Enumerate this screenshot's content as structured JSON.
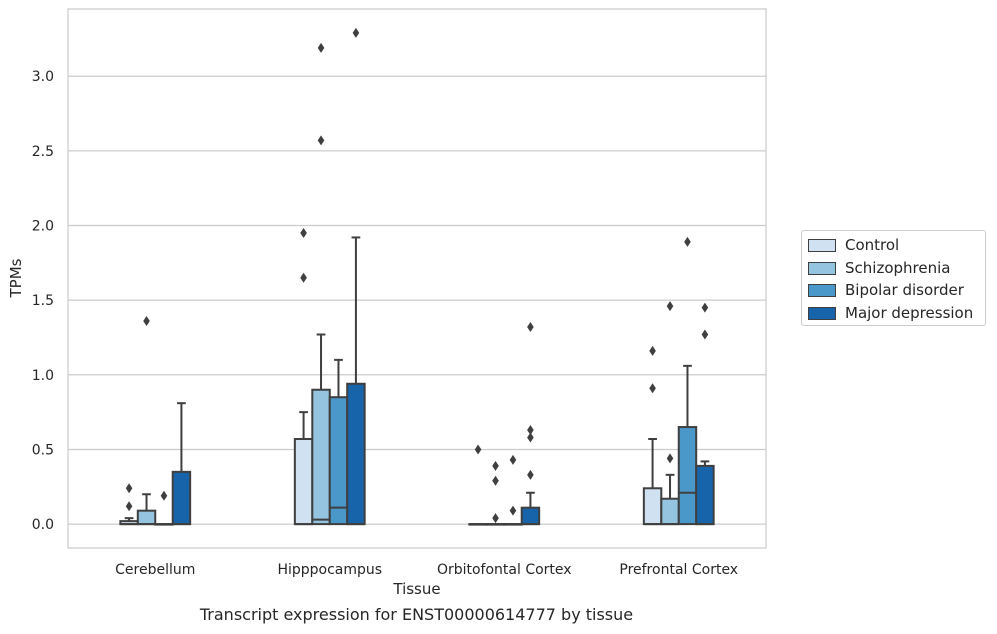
{
  "chart_data": {
    "type": "box",
    "title": "Transcript expression for ENST00000614777 by tissue",
    "xlabel": "Tissue",
    "ylabel": "TPMs",
    "ylim": [
      -0.16,
      3.45
    ],
    "yticks": [
      "0.0",
      "0.5",
      "1.0",
      "1.5",
      "2.0",
      "2.5",
      "3.0"
    ],
    "grid": true,
    "legend_position": "right",
    "categories": [
      "Cerebellum",
      "Hipppocampus",
      "Orbitofontal Cortex",
      "Prefrontal Cortex"
    ],
    "series": [
      {
        "name": "Control",
        "color": "#d0e1f2",
        "boxes": [
          {
            "category": "Cerebellum",
            "min": 0.0,
            "q1": 0.0,
            "median": 0.0,
            "q3": 0.02,
            "max": 0.04,
            "outliers": [
              0.12,
              0.24
            ]
          },
          {
            "category": "Hipppocampus",
            "min": 0.0,
            "q1": 0.0,
            "median": 0.0,
            "q3": 0.57,
            "max": 0.75,
            "outliers": [
              1.65,
              1.95
            ]
          },
          {
            "category": "Orbitofontal Cortex",
            "min": 0.0,
            "q1": 0.0,
            "median": 0.0,
            "q3": 0.0,
            "max": 0.0,
            "outliers": [
              0.5
            ]
          },
          {
            "category": "Prefrontal Cortex",
            "min": 0.0,
            "q1": 0.0,
            "median": 0.0,
            "q3": 0.24,
            "max": 0.57,
            "outliers": [
              0.91,
              1.16
            ]
          }
        ]
      },
      {
        "name": "Schizophrenia",
        "color": "#94c4df",
        "boxes": [
          {
            "category": "Cerebellum",
            "min": 0.0,
            "q1": 0.0,
            "median": 0.0,
            "q3": 0.09,
            "max": 0.2,
            "outliers": [
              1.36
            ]
          },
          {
            "category": "Hipppocampus",
            "min": 0.0,
            "q1": 0.0,
            "median": 0.03,
            "q3": 0.9,
            "max": 1.27,
            "outliers": [
              2.57,
              3.19
            ]
          },
          {
            "category": "Orbitofontal Cortex",
            "min": 0.0,
            "q1": 0.0,
            "median": 0.0,
            "q3": 0.0,
            "max": 0.0,
            "outliers": [
              0.04,
              0.29,
              0.39
            ]
          },
          {
            "category": "Prefrontal Cortex",
            "min": 0.0,
            "q1": 0.0,
            "median": 0.0,
            "q3": 0.17,
            "max": 0.33,
            "outliers": [
              0.44,
              1.46
            ]
          }
        ]
      },
      {
        "name": "Bipolar disorder",
        "color": "#4a98c9",
        "boxes": [
          {
            "category": "Cerebellum",
            "min": 0.0,
            "q1": 0.0,
            "median": 0.0,
            "q3": 0.0,
            "max": 0.0,
            "outliers": [
              0.19
            ]
          },
          {
            "category": "Hipppocampus",
            "min": 0.0,
            "q1": 0.0,
            "median": 0.11,
            "q3": 0.85,
            "max": 1.1,
            "outliers": []
          },
          {
            "category": "Orbitofontal Cortex",
            "min": 0.0,
            "q1": 0.0,
            "median": 0.0,
            "q3": 0.0,
            "max": 0.0,
            "outliers": [
              0.09,
              0.43
            ]
          },
          {
            "category": "Prefrontal Cortex",
            "min": 0.0,
            "q1": 0.0,
            "median": 0.21,
            "q3": 0.65,
            "max": 1.06,
            "outliers": [
              1.89
            ]
          }
        ]
      },
      {
        "name": "Major depression",
        "color": "#1764ab",
        "boxes": [
          {
            "category": "Cerebellum",
            "min": 0.0,
            "q1": 0.0,
            "median": 0.0,
            "q3": 0.35,
            "max": 0.81,
            "outliers": []
          },
          {
            "category": "Hipppocampus",
            "min": 0.0,
            "q1": 0.0,
            "median": 0.0,
            "q3": 0.94,
            "max": 1.92,
            "outliers": [
              3.29
            ]
          },
          {
            "category": "Orbitofontal Cortex",
            "min": 0.0,
            "q1": 0.0,
            "median": 0.0,
            "q3": 0.11,
            "max": 0.21,
            "outliers": [
              0.33,
              0.58,
              0.63,
              1.32
            ]
          },
          {
            "category": "Prefrontal Cortex",
            "min": 0.0,
            "q1": 0.0,
            "median": 0.0,
            "q3": 0.39,
            "max": 0.42,
            "outliers": [
              1.27,
              1.45
            ]
          }
        ]
      }
    ]
  }
}
